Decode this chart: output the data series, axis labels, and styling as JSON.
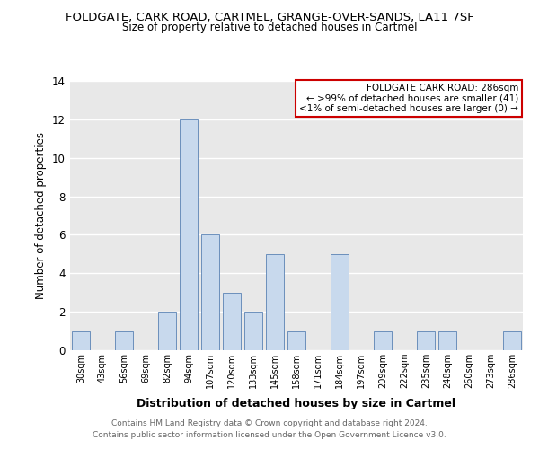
{
  "title": "FOLDGATE, CARK ROAD, CARTMEL, GRANGE-OVER-SANDS, LA11 7SF",
  "subtitle": "Size of property relative to detached houses in Cartmel",
  "xlabel": "Distribution of detached houses by size in Cartmel",
  "ylabel": "Number of detached properties",
  "bar_color": "#c8d9ed",
  "bar_edge_color": "#5a82b4",
  "categories": [
    "30sqm",
    "43sqm",
    "56sqm",
    "69sqm",
    "82sqm",
    "94sqm",
    "107sqm",
    "120sqm",
    "133sqm",
    "145sqm",
    "158sqm",
    "171sqm",
    "184sqm",
    "197sqm",
    "209sqm",
    "222sqm",
    "235sqm",
    "248sqm",
    "260sqm",
    "273sqm",
    "286sqm"
  ],
  "values": [
    1,
    0,
    1,
    0,
    2,
    12,
    6,
    3,
    2,
    5,
    1,
    0,
    5,
    0,
    1,
    0,
    1,
    1,
    0,
    0,
    1
  ],
  "ylim": [
    0,
    14
  ],
  "yticks": [
    0,
    2,
    4,
    6,
    8,
    10,
    12,
    14
  ],
  "annotation_box_text_line1": "FOLDGATE CARK ROAD: 286sqm",
  "annotation_box_text_line2": "← >99% of detached houses are smaller (41)",
  "annotation_box_text_line3": "<1% of semi-detached houses are larger (0) →",
  "annotation_box_edge_color": "#cc0000",
  "footer_line1": "Contains HM Land Registry data © Crown copyright and database right 2024.",
  "footer_line2": "Contains public sector information licensed under the Open Government Licence v3.0.",
  "grid_color": "white",
  "bg_color": "#e8e8e8",
  "footer_color": "#666666"
}
